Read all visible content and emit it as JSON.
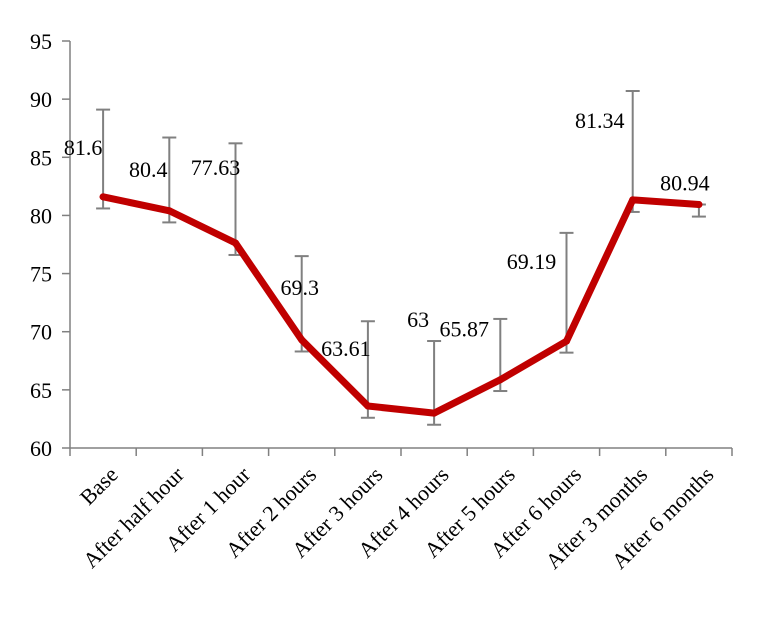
{
  "chart_data": {
    "type": "line",
    "title": "",
    "xlabel": "",
    "ylabel": "",
    "ylim": [
      60,
      95
    ],
    "yticks": [
      60,
      65,
      70,
      75,
      80,
      85,
      90,
      95
    ],
    "grid": false,
    "legend": "none",
    "categories": [
      "Base",
      "After half hour",
      "After 1 hour",
      "After 2 hours",
      "After 3 hours",
      "After 4 hours",
      "After 5 hours",
      "After 6 hours",
      "After 3 months",
      "After 6 months"
    ],
    "series": [
      {
        "values": [
          81.6,
          80.4,
          77.63,
          69.3,
          63.61,
          63,
          65.87,
          69.19,
          81.34,
          80.94
        ],
        "data_labels": [
          "81.6",
          "80.4",
          "77.63",
          "69.3",
          "63.61",
          "63",
          "65.87",
          "69.19",
          "81.34",
          "80.94"
        ],
        "error_low": [
          80.6,
          79.4,
          76.6,
          68.3,
          62.6,
          62.0,
          64.9,
          68.2,
          80.3,
          79.9
        ],
        "error_high": [
          89.1,
          86.7,
          86.2,
          76.5,
          70.9,
          69.2,
          71.1,
          78.5,
          90.7,
          80.94
        ],
        "color": "#c00000"
      }
    ],
    "error_bar_color": "#808080"
  }
}
